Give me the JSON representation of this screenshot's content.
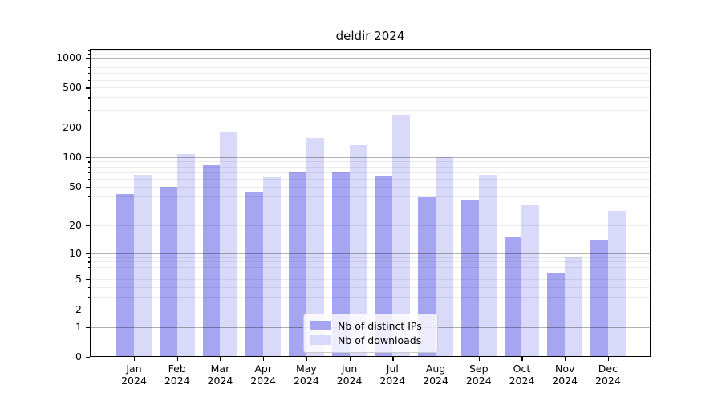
{
  "title": "deldir 2024",
  "chart_data": {
    "type": "bar",
    "title": "deldir 2024",
    "xlabel": "",
    "ylabel": "",
    "yscale": "log1p",
    "ylim": [
      0,
      1227
    ],
    "grid": true,
    "legend_position": "bottom-center",
    "categories": [
      "Jan",
      "Feb",
      "Mar",
      "Apr",
      "May",
      "Jun",
      "Jul",
      "Aug",
      "Sep",
      "Oct",
      "Nov",
      "Dec"
    ],
    "category_year": "2024",
    "series": [
      {
        "name": "Nb of distinct IPs",
        "color": "#a5a5f2",
        "values": [
          42,
          50,
          82,
          44,
          70,
          70,
          65,
          39,
          37,
          15,
          6,
          14
        ]
      },
      {
        "name": "Nb of downloads",
        "color": "#d9d9f9",
        "values": [
          66,
          108,
          178,
          62,
          156,
          132,
          263,
          100,
          66,
          33,
          9,
          28
        ]
      }
    ],
    "yticks": [
      0,
      1,
      2,
      5,
      10,
      20,
      50,
      100,
      200,
      500,
      1000
    ],
    "grid_major": [
      1,
      10,
      100,
      1000
    ],
    "grid_minor": [
      2,
      3,
      4,
      5,
      6,
      7,
      8,
      9,
      20,
      30,
      40,
      50,
      60,
      70,
      80,
      90,
      200,
      300,
      400,
      500,
      600,
      700,
      800,
      900,
      1100,
      1200
    ],
    "grid_major_color": "#b3b3b3",
    "grid_minor_color": "#ececec"
  }
}
